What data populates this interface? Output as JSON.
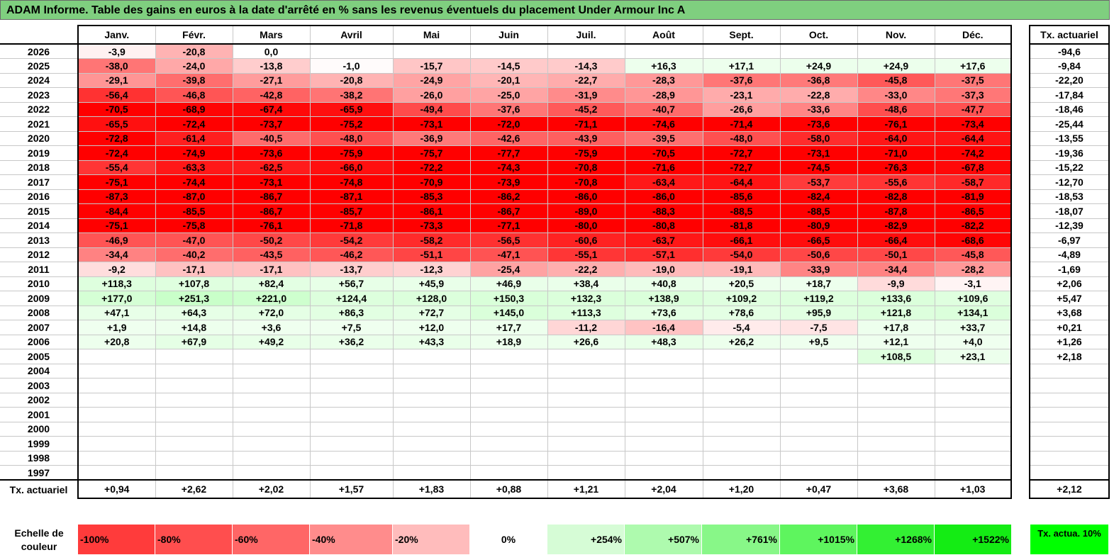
{
  "title": "ADAM Informe. Table des gains en euros à la date d'arrêté en % sans les revenus éventuels du placement Under Armour Inc A",
  "months": [
    "Janv.",
    "Févr.",
    "Mars",
    "Avril",
    "Mai",
    "Juin",
    "Juil.",
    "Août",
    "Sept.",
    "Oct.",
    "Nov.",
    "Déc."
  ],
  "actuarial_header": "Tx. actuariel",
  "rows": [
    {
      "year": "2026",
      "values": [
        "-3,9",
        "-20,8",
        "0,0",
        "",
        "",
        "",
        "",
        "",
        "",
        "",
        "",
        ""
      ],
      "actuarial": "-94,6"
    },
    {
      "year": "2025",
      "values": [
        "-38,0",
        "-24,0",
        "-13,8",
        "-1,0",
        "-15,7",
        "-14,5",
        "-14,3",
        "+16,3",
        "+17,1",
        "+24,9",
        "+24,9",
        "+17,6"
      ],
      "actuarial": "-9,84"
    },
    {
      "year": "2024",
      "values": [
        "-29,1",
        "-39,8",
        "-27,1",
        "-20,8",
        "-24,9",
        "-20,1",
        "-22,7",
        "-28,3",
        "-37,6",
        "-36,8",
        "-45,8",
        "-37,5"
      ],
      "actuarial": "-22,20"
    },
    {
      "year": "2023",
      "values": [
        "-56,4",
        "-46,8",
        "-42,8",
        "-38,2",
        "-26,0",
        "-25,0",
        "-31,9",
        "-28,9",
        "-23,1",
        "-22,8",
        "-33,0",
        "-37,3"
      ],
      "actuarial": "-17,84"
    },
    {
      "year": "2022",
      "values": [
        "-70,5",
        "-68,9",
        "-67,4",
        "-65,9",
        "-49,4",
        "-37,6",
        "-45,2",
        "-40,7",
        "-26,6",
        "-33,6",
        "-48,6",
        "-47,7"
      ],
      "actuarial": "-18,46"
    },
    {
      "year": "2021",
      "values": [
        "-65,5",
        "-72,4",
        "-73,7",
        "-75,2",
        "-73,1",
        "-72,0",
        "-71,1",
        "-74,6",
        "-71,4",
        "-73,6",
        "-76,1",
        "-73,4"
      ],
      "actuarial": "-25,44"
    },
    {
      "year": "2020",
      "values": [
        "-72,8",
        "-61,4",
        "-40,5",
        "-48,0",
        "-36,9",
        "-42,6",
        "-43,9",
        "-39,5",
        "-48,0",
        "-58,0",
        "-64,0",
        "-64,4"
      ],
      "actuarial": "-13,55"
    },
    {
      "year": "2019",
      "values": [
        "-72,4",
        "-74,9",
        "-73,6",
        "-75,9",
        "-75,7",
        "-77,7",
        "-75,9",
        "-70,5",
        "-72,7",
        "-73,1",
        "-71,0",
        "-74,2"
      ],
      "actuarial": "-19,36"
    },
    {
      "year": "2018",
      "values": [
        "-55,4",
        "-63,3",
        "-62,5",
        "-66,0",
        "-72,2",
        "-74,3",
        "-70,8",
        "-71,6",
        "-72,7",
        "-74,5",
        "-76,3",
        "-67,8"
      ],
      "actuarial": "-15,22"
    },
    {
      "year": "2017",
      "values": [
        "-75,1",
        "-74,4",
        "-73,1",
        "-74,8",
        "-70,9",
        "-73,9",
        "-70,8",
        "-63,4",
        "-64,4",
        "-53,7",
        "-55,6",
        "-58,7"
      ],
      "actuarial": "-12,70"
    },
    {
      "year": "2016",
      "values": [
        "-87,3",
        "-87,0",
        "-86,7",
        "-87,1",
        "-85,3",
        "-86,2",
        "-86,0",
        "-86,0",
        "-85,6",
        "-82,4",
        "-82,8",
        "-81,9"
      ],
      "actuarial": "-18,53"
    },
    {
      "year": "2015",
      "values": [
        "-84,4",
        "-85,5",
        "-86,7",
        "-85,7",
        "-86,1",
        "-86,7",
        "-89,0",
        "-88,3",
        "-88,5",
        "-88,5",
        "-87,8",
        "-86,5"
      ],
      "actuarial": "-18,07"
    },
    {
      "year": "2014",
      "values": [
        "-75,1",
        "-75,8",
        "-76,1",
        "-71,8",
        "-73,3",
        "-77,1",
        "-80,0",
        "-80,8",
        "-81,8",
        "-80,9",
        "-82,9",
        "-82,2"
      ],
      "actuarial": "-12,39"
    },
    {
      "year": "2013",
      "values": [
        "-46,9",
        "-47,0",
        "-50,2",
        "-54,2",
        "-58,2",
        "-56,5",
        "-60,6",
        "-63,7",
        "-66,1",
        "-66,5",
        "-66,4",
        "-68,6"
      ],
      "actuarial": "-6,97"
    },
    {
      "year": "2012",
      "values": [
        "-34,4",
        "-40,2",
        "-43,5",
        "-46,2",
        "-51,1",
        "-47,1",
        "-55,1",
        "-57,1",
        "-54,0",
        "-50,6",
        "-50,1",
        "-45,8"
      ],
      "actuarial": "-4,89"
    },
    {
      "year": "2011",
      "values": [
        "-9,2",
        "-17,1",
        "-17,1",
        "-13,7",
        "-12,3",
        "-25,4",
        "-22,2",
        "-19,0",
        "-19,1",
        "-33,9",
        "-34,4",
        "-28,2"
      ],
      "actuarial": "-1,69"
    },
    {
      "year": "2010",
      "values": [
        "+118,3",
        "+107,8",
        "+82,4",
        "+56,7",
        "+45,9",
        "+46,9",
        "+38,4",
        "+40,8",
        "+20,5",
        "+18,7",
        "-9,9",
        "-3,1"
      ],
      "actuarial": "+2,06"
    },
    {
      "year": "2009",
      "values": [
        "+177,0",
        "+251,3",
        "+221,0",
        "+124,4",
        "+128,0",
        "+150,3",
        "+132,3",
        "+138,9",
        "+109,2",
        "+119,2",
        "+133,6",
        "+109,6"
      ],
      "actuarial": "+5,47"
    },
    {
      "year": "2008",
      "values": [
        "+47,1",
        "+64,3",
        "+72,0",
        "+86,3",
        "+72,7",
        "+145,0",
        "+113,3",
        "+73,6",
        "+78,6",
        "+95,9",
        "+121,8",
        "+134,1"
      ],
      "actuarial": "+3,68"
    },
    {
      "year": "2007",
      "values": [
        "+1,9",
        "+14,8",
        "+3,6",
        "+7,5",
        "+12,0",
        "+17,7",
        "-11,2",
        "-16,4",
        "-5,4",
        "-7,5",
        "+17,8",
        "+33,7"
      ],
      "actuarial": "+0,21"
    },
    {
      "year": "2006",
      "values": [
        "+20,8",
        "+67,9",
        "+49,2",
        "+36,2",
        "+43,3",
        "+18,9",
        "+26,6",
        "+48,3",
        "+26,2",
        "+9,5",
        "+12,1",
        "+4,0"
      ],
      "actuarial": "+1,26"
    },
    {
      "year": "2005",
      "values": [
        "",
        "",
        "",
        "",
        "",
        "",
        "",
        "",
        "",
        "",
        "+108,5",
        "+23,1"
      ],
      "actuarial": "+2,18"
    },
    {
      "year": "2004",
      "values": [
        "",
        "",
        "",
        "",
        "",
        "",
        "",
        "",
        "",
        "",
        "",
        ""
      ],
      "actuarial": ""
    },
    {
      "year": "2003",
      "values": [
        "",
        "",
        "",
        "",
        "",
        "",
        "",
        "",
        "",
        "",
        "",
        ""
      ],
      "actuarial": ""
    },
    {
      "year": "2002",
      "values": [
        "",
        "",
        "",
        "",
        "",
        "",
        "",
        "",
        "",
        "",
        "",
        ""
      ],
      "actuarial": ""
    },
    {
      "year": "2001",
      "values": [
        "",
        "",
        "",
        "",
        "",
        "",
        "",
        "",
        "",
        "",
        "",
        ""
      ],
      "actuarial": ""
    },
    {
      "year": "2000",
      "values": [
        "",
        "",
        "",
        "",
        "",
        "",
        "",
        "",
        "",
        "",
        "",
        ""
      ],
      "actuarial": ""
    },
    {
      "year": "1999",
      "values": [
        "",
        "",
        "",
        "",
        "",
        "",
        "",
        "",
        "",
        "",
        "",
        ""
      ],
      "actuarial": ""
    },
    {
      "year": "1998",
      "values": [
        "",
        "",
        "",
        "",
        "",
        "",
        "",
        "",
        "",
        "",
        "",
        ""
      ],
      "actuarial": ""
    },
    {
      "year": "1997",
      "values": [
        "",
        "",
        "",
        "",
        "",
        "",
        "",
        "",
        "",
        "",
        "",
        ""
      ],
      "actuarial": ""
    }
  ],
  "footer": {
    "label": "Tx. actuariel",
    "values": [
      "+0,94",
      "+2,62",
      "+2,02",
      "+1,57",
      "+1,83",
      "+0,88",
      "+1,21",
      "+2,04",
      "+1,20",
      "+0,47",
      "+3,68",
      "+1,03"
    ],
    "total": "+2,12"
  },
  "legend": {
    "label": "Echelle de couleur",
    "swatches": [
      {
        "text": "-100%",
        "color": "#ff3b3b"
      },
      {
        "text": "-80%",
        "color": "#ff4e4e"
      },
      {
        "text": "-60%",
        "color": "#ff6666"
      },
      {
        "text": "-40%",
        "color": "#ff8c8c"
      },
      {
        "text": "-20%",
        "color": "#ffbcbc"
      },
      {
        "text": "0%",
        "color": "#ffffff"
      },
      {
        "text": "+254%",
        "color": "#d6fcd6"
      },
      {
        "text": "+507%",
        "color": "#aefaae"
      },
      {
        "text": "+761%",
        "color": "#88f788"
      },
      {
        "text": "+1015%",
        "color": "#5ef55e"
      },
      {
        "text": "+1268%",
        "color": "#33f033"
      },
      {
        "text": "+1522%",
        "color": "#14ec14"
      }
    ],
    "actuarial_label": "Tx. actua. 10%",
    "actuarial_color": "#00ff00"
  }
}
